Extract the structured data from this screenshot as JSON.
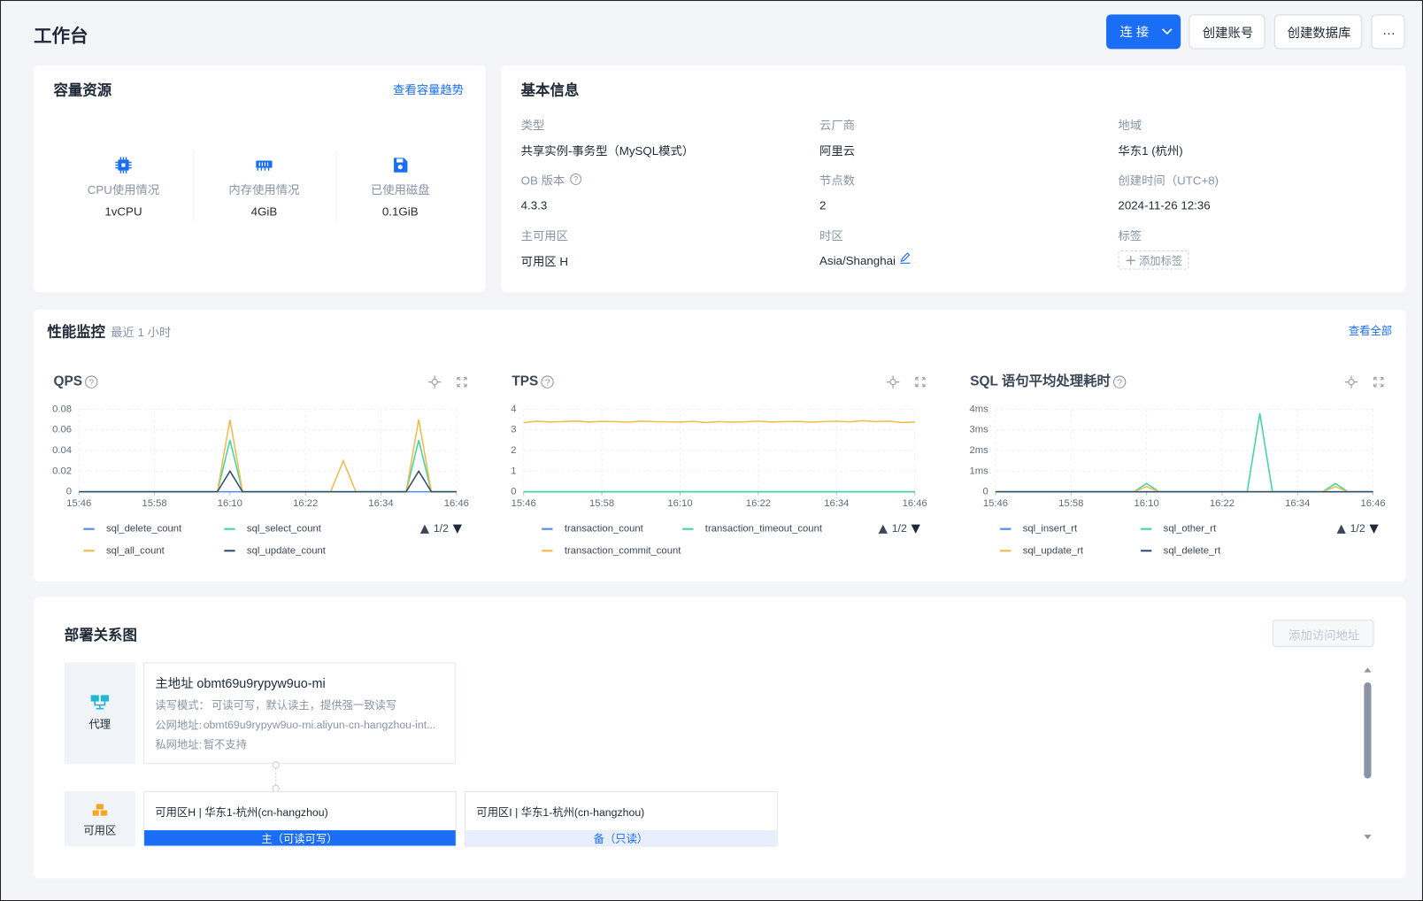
{
  "header": {
    "title": "工作台",
    "buttons": [
      "连 接",
      "创建账号",
      "创建数据库",
      "···"
    ]
  },
  "capacity": {
    "title": "容量资源",
    "link": "查看容量趋势",
    "items": [
      {
        "label": "CPU使用情况",
        "value": "1vCPU"
      },
      {
        "label": "内存使用情况",
        "value": "4GiB"
      },
      {
        "label": "已使用磁盘",
        "value": "0.1GiB"
      }
    ]
  },
  "basic": {
    "title": "基本信息",
    "fields": [
      {
        "label": "类型",
        "value": "共享实例-事务型（MySQL模式）"
      },
      {
        "label": "云厂商",
        "value": "阿里云"
      },
      {
        "label": "地域",
        "value": "华东1 (杭州)"
      },
      {
        "label": "OB 版本",
        "value": "4.3.3"
      },
      {
        "label": "节点数",
        "value": "2"
      },
      {
        "label": "创建时间（UTC+8)",
        "value": "2024-11-26 12:36"
      },
      {
        "label": "主可用区",
        "value": "可用区 H"
      },
      {
        "label": "时区",
        "value": "Asia/Shanghai"
      },
      {
        "label": "标签",
        "value": "添加标签"
      }
    ]
  },
  "monitor": {
    "title": "性能监控",
    "subtitle": "最近 1 小时",
    "link": "查看全部",
    "charts": [
      {
        "type": "line",
        "title": "QPS",
        "pager": "1/2",
        "x": [
          "15:46",
          "15:48",
          "15:50",
          "15:52",
          "15:54",
          "15:56",
          "15:58",
          "16:00",
          "16:02",
          "16:04",
          "16:06",
          "16:08",
          "16:10",
          "16:12",
          "16:14",
          "16:16",
          "16:18",
          "16:20",
          "16:22",
          "16:24",
          "16:26",
          "16:28",
          "16:30",
          "16:32",
          "16:34",
          "16:36",
          "16:38",
          "16:40",
          "16:42",
          "16:44",
          "16:46"
        ],
        "xticks": [
          "15:46",
          "15:58",
          "16:10",
          "16:22",
          "16:34",
          "16:46"
        ],
        "ylim": [
          0,
          0.08
        ],
        "yticks": [
          0,
          0.02,
          0.04,
          0.06,
          0.08
        ],
        "grid": true,
        "series": [
          {
            "name": "sql_delete_count",
            "color": "#4a8cf0",
            "values": [
              0,
              0,
              0,
              0,
              0,
              0,
              0,
              0,
              0,
              0,
              0,
              0,
              0,
              0,
              0,
              0,
              0,
              0,
              0,
              0,
              0,
              0,
              0,
              0,
              0,
              0,
              0,
              0,
              0,
              0,
              0
            ]
          },
          {
            "name": "sql_select_count",
            "color": "#3dd6a3",
            "values": [
              0,
              0,
              0,
              0,
              0,
              0,
              0,
              0,
              0,
              0,
              0,
              0,
              0.05,
              0,
              0,
              0,
              0,
              0,
              0,
              0,
              0,
              0,
              0,
              0,
              0,
              0,
              0,
              0.05,
              0,
              0,
              0
            ]
          },
          {
            "name": "sql_all_count",
            "color": "#f5b94a",
            "values": [
              0,
              0,
              0,
              0,
              0,
              0,
              0,
              0,
              0,
              0,
              0,
              0,
              0.07,
              0,
              0,
              0,
              0,
              0,
              0,
              0,
              0,
              0.03,
              0,
              0,
              0,
              0,
              0,
              0.07,
              0,
              0,
              0
            ]
          },
          {
            "name": "sql_update_count",
            "color": "#2e4b6e",
            "values": [
              0,
              0,
              0,
              0,
              0,
              0,
              0,
              0,
              0,
              0,
              0,
              0,
              0.02,
              0,
              0,
              0,
              0,
              0,
              0,
              0,
              0,
              0,
              0,
              0,
              0,
              0,
              0,
              0.02,
              0,
              0,
              0
            ]
          }
        ]
      },
      {
        "type": "line",
        "title": "TPS",
        "pager": "1/2",
        "x": [
          "15:46",
          "15:48",
          "15:50",
          "15:52",
          "15:54",
          "15:56",
          "15:58",
          "16:00",
          "16:02",
          "16:04",
          "16:06",
          "16:08",
          "16:10",
          "16:12",
          "16:14",
          "16:16",
          "16:18",
          "16:20",
          "16:22",
          "16:24",
          "16:26",
          "16:28",
          "16:30",
          "16:32",
          "16:34",
          "16:36",
          "16:38",
          "16:40",
          "16:42",
          "16:44",
          "16:46"
        ],
        "xticks": [
          "15:46",
          "15:58",
          "16:10",
          "16:22",
          "16:34",
          "16:46"
        ],
        "ylim": [
          0,
          4
        ],
        "yticks": [
          0,
          1,
          2,
          3,
          4
        ],
        "grid": true,
        "series": [
          {
            "name": "transaction_count",
            "color": "#4a8cf0",
            "values": [
              0,
              0,
              0,
              0,
              0,
              0,
              0,
              0,
              0,
              0,
              0,
              0,
              0,
              0,
              0,
              0,
              0,
              0,
              0,
              0,
              0,
              0,
              0,
              0,
              0,
              0,
              0,
              0,
              0,
              0,
              0
            ]
          },
          {
            "name": "transaction_timeout_count",
            "color": "#3dd6a3",
            "values": [
              0,
              0,
              0,
              0,
              0,
              0,
              0,
              0,
              0,
              0,
              0,
              0,
              0,
              0,
              0,
              0,
              0,
              0,
              0,
              0,
              0,
              0,
              0,
              0,
              0,
              0,
              0,
              0,
              0,
              0,
              0
            ]
          },
          {
            "name": "transaction_commit_count",
            "color": "#f5b94a",
            "values": [
              3.35,
              3.42,
              3.38,
              3.4,
              3.43,
              3.38,
              3.41,
              3.4,
              3.37,
              3.42,
              3.4,
              3.39,
              3.38,
              3.41,
              3.36,
              3.4,
              3.37,
              3.39,
              3.42,
              3.38,
              3.4,
              3.41,
              3.37,
              3.4,
              3.42,
              3.39,
              3.44,
              3.4,
              3.42,
              3.36,
              3.38
            ]
          }
        ]
      },
      {
        "type": "line",
        "title": "SQL 语句平均处理耗时",
        "pager": "1/2",
        "x": [
          "15:46",
          "15:48",
          "15:50",
          "15:52",
          "15:54",
          "15:56",
          "15:58",
          "16:00",
          "16:02",
          "16:04",
          "16:06",
          "16:08",
          "16:10",
          "16:12",
          "16:14",
          "16:16",
          "16:18",
          "16:20",
          "16:22",
          "16:24",
          "16:26",
          "16:28",
          "16:30",
          "16:32",
          "16:34",
          "16:36",
          "16:38",
          "16:40",
          "16:42",
          "16:44",
          "16:46"
        ],
        "xticks": [
          "15:46",
          "15:58",
          "16:10",
          "16:22",
          "16:34",
          "16:46"
        ],
        "ylim": [
          0,
          4
        ],
        "yticks": [
          0,
          {
            "value": 1,
            "label": "1ms"
          },
          {
            "value": 2,
            "label": "2ms"
          },
          {
            "value": 3,
            "label": "3ms"
          },
          {
            "value": 4,
            "label": "4ms"
          }
        ],
        "grid": true,
        "series": [
          {
            "name": "sql_insert_rt",
            "color": "#4a8cf0",
            "values": [
              0,
              0,
              0,
              0,
              0,
              0,
              0,
              0,
              0,
              0,
              0,
              0,
              0,
              0,
              0,
              0,
              0,
              0,
              0,
              0,
              0,
              0,
              0,
              0,
              0,
              0,
              0,
              0,
              0,
              0,
              0
            ]
          },
          {
            "name": "sql_other_rt",
            "color": "#3dd6a3",
            "values": [
              0,
              0,
              0,
              0,
              0,
              0,
              0,
              0,
              0,
              0,
              0,
              0,
              0.4,
              0,
              0,
              0,
              0,
              0,
              0,
              0,
              0,
              3.8,
              0,
              0,
              0,
              0,
              0,
              0.4,
              0,
              0,
              0
            ]
          },
          {
            "name": "sql_update_rt",
            "color": "#f5b94a",
            "values": [
              0,
              0,
              0,
              0,
              0,
              0,
              0,
              0,
              0,
              0,
              0,
              0,
              0.25,
              0,
              0,
              0,
              0,
              0,
              0,
              0,
              0,
              0,
              0,
              0,
              0,
              0,
              0,
              0.25,
              0,
              0,
              0
            ]
          },
          {
            "name": "sql_delete_rt",
            "color": "#2e4b6e",
            "values": [
              0,
              0,
              0,
              0,
              0,
              0,
              0,
              0,
              0,
              0,
              0,
              0,
              0,
              0,
              0,
              0,
              0,
              0,
              0,
              0,
              0,
              0,
              0,
              0,
              0,
              0,
              0,
              0,
              0,
              0,
              0
            ]
          }
        ]
      }
    ]
  },
  "deploy": {
    "title": "部署关系图",
    "button": "添加访问地址",
    "proxy": "代理",
    "main": {
      "title": "主地址 obmt69u9rypyw9uo-mi",
      "lines": [
        {
          "label": "读写模式：",
          "value": "可读可写，默认读主，提供强一致读写"
        },
        {
          "label": "公网地址:",
          "value": "obmt69u9rypyw9uo-mi.aliyun-cn-hangzhou-int..."
        },
        {
          "label": "私网地址:",
          "value": "暂不支持"
        }
      ]
    },
    "zone_label": "可用区",
    "zones": [
      {
        "name": "可用区H | 华东1-杭州(cn-hangzhou)",
        "role": "主（可读可写）"
      },
      {
        "name": "可用区I | 华东1-杭州(cn-hangzhou)",
        "role": "备（只读）"
      }
    ]
  }
}
